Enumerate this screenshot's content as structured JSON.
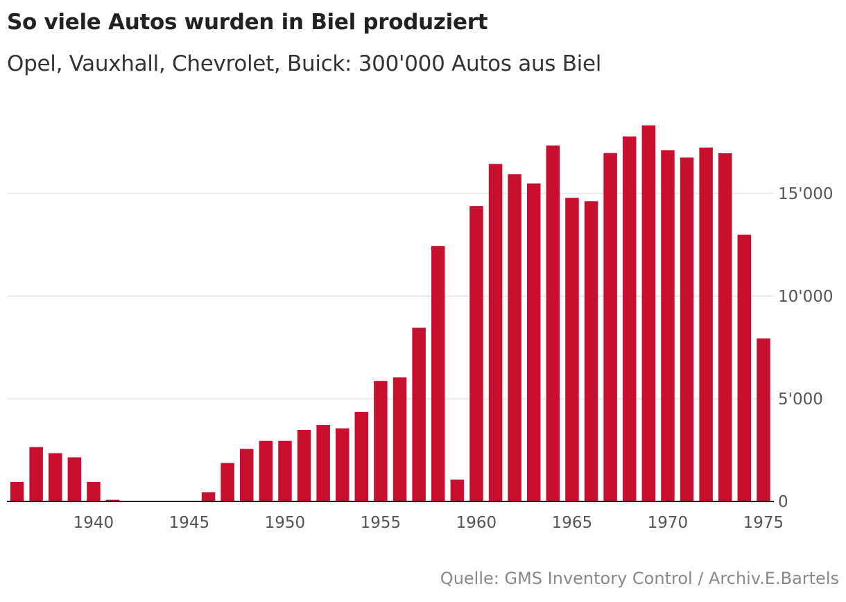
{
  "chart_data": {
    "type": "bar",
    "title": "So viele Autos wurden in Biel produziert",
    "subtitle": "Opel, Vauxhall, Chevrolet, Buick: 300'000 Autos aus Biel",
    "source": "Quelle: GMS Inventory Control / Archiv.E.Bartels",
    "xlabel": "",
    "ylabel": "",
    "categories": [
      1936,
      1937,
      1938,
      1939,
      1940,
      1941,
      1942,
      1943,
      1944,
      1945,
      1946,
      1947,
      1948,
      1949,
      1950,
      1951,
      1952,
      1953,
      1954,
      1955,
      1956,
      1957,
      1958,
      1959,
      1960,
      1961,
      1962,
      1963,
      1964,
      1965,
      1966,
      1967,
      1968,
      1969,
      1970,
      1971,
      1972,
      1973,
      1974,
      1975
    ],
    "values": [
      950,
      2650,
      2350,
      2150,
      950,
      80,
      0,
      0,
      0,
      0,
      450,
      1870,
      2560,
      2950,
      2950,
      3480,
      3720,
      3560,
      4360,
      5870,
      6040,
      8460,
      12440,
      1060,
      14390,
      16440,
      15940,
      15490,
      17340,
      14790,
      14620,
      16970,
      17780,
      18320,
      17110,
      16750,
      17240,
      16960,
      12990,
      7940
    ],
    "x_ticks": [
      "1940",
      "1945",
      "1950",
      "1955",
      "1960",
      "1965",
      "1970",
      "1975"
    ],
    "y_ticks": [
      "0",
      "5'000",
      "10'000",
      "15'000"
    ],
    "y_tick_values": [
      0,
      5000,
      10000,
      15000
    ],
    "ylim": [
      0,
      19000
    ],
    "grid": true,
    "bar_color": "#c8102e"
  }
}
